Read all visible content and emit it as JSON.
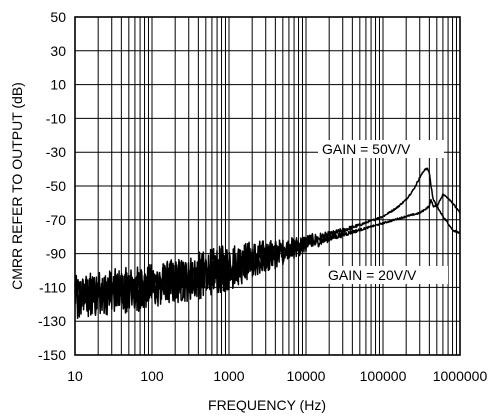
{
  "chart_data": {
    "type": "line",
    "xlabel": "FREQUENCY (Hz)",
    "ylabel": "CMRR REFER TO OUTPUT (dB)",
    "x_scale": "log",
    "xlim": [
      10,
      1000000
    ],
    "ylim": [
      -150,
      50
    ],
    "grid": true,
    "x_ticks": [
      10,
      100,
      1000,
      10000,
      100000,
      1000000
    ],
    "x_tick_labels": [
      "10",
      "100",
      "1000",
      "10000",
      "100000",
      "1000000"
    ],
    "y_ticks": [
      50,
      30,
      10,
      -10,
      -30,
      -50,
      -70,
      -90,
      -110,
      -130,
      -150
    ],
    "y_tick_labels": [
      "50",
      "30",
      "10",
      "-10",
      "-30",
      "-50",
      "-70",
      "-90",
      "-110",
      "-130",
      "-150"
    ],
    "annotations": [
      "GAIN = 50V/V",
      "GAIN = 20V/V"
    ],
    "series": [
      {
        "label": "GAIN = 50V/V",
        "x": [
          10,
          20,
          50,
          100,
          200,
          500,
          1000,
          2000,
          5000,
          10000,
          20000,
          50000,
          100000,
          150000,
          200000,
          250000,
          300000,
          350000,
          380000,
          400000,
          420000,
          450000,
          500000,
          600000,
          700000,
          800000,
          1000000
        ],
        "y": [
          -115,
          -112,
          -110,
          -108,
          -105,
          -100,
          -96,
          -92,
          -88,
          -83,
          -79,
          -73,
          -68,
          -63,
          -58,
          -52,
          -45,
          -40,
          -40,
          -42,
          -50,
          -58,
          -62,
          -68,
          -72,
          -76,
          -78
        ]
      },
      {
        "label": "GAIN = 20V/V",
        "x": [
          10,
          20,
          50,
          100,
          200,
          500,
          1000,
          2000,
          5000,
          10000,
          20000,
          50000,
          100000,
          200000,
          300000,
          400000,
          420000,
          450000,
          500000,
          600000,
          700000,
          800000,
          1000000
        ],
        "y": [
          -118,
          -115,
          -113,
          -111,
          -108,
          -104,
          -100,
          -96,
          -90,
          -85,
          -81,
          -76,
          -72,
          -68,
          -66,
          -62,
          -58,
          -62,
          -62,
          -55,
          -57,
          -60,
          -66
        ]
      }
    ]
  }
}
